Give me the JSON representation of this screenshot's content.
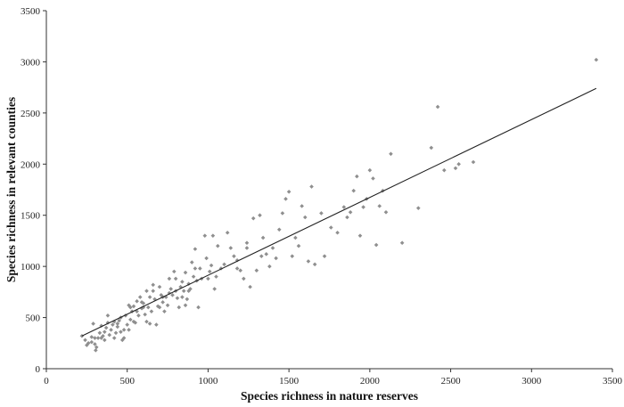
{
  "chart_data": {
    "type": "scatter",
    "title": "",
    "xlabel": "Species richness in nature reserves",
    "ylabel": "Species richness in relevant counties",
    "xlim": [
      0,
      3500
    ],
    "ylim": [
      0,
      3500
    ],
    "xticks": [
      0,
      500,
      1000,
      1500,
      2000,
      2500,
      3000,
      3500
    ],
    "yticks": [
      0,
      500,
      1000,
      1500,
      2000,
      2500,
      3000,
      3500
    ],
    "grid": false,
    "legend": "none",
    "colors": {
      "points": "#8f8f8f",
      "trendline": "#222222",
      "axes": "#333333"
    },
    "trendline": {
      "x": [
        220,
        3400
      ],
      "y": [
        320,
        2740
      ]
    },
    "series": [
      {
        "points": [
          [
            220,
            320
          ],
          [
            240,
            280
          ],
          [
            250,
            230
          ],
          [
            260,
            250
          ],
          [
            280,
            310
          ],
          [
            290,
            440
          ],
          [
            300,
            240
          ],
          [
            305,
            180
          ],
          [
            310,
            210
          ],
          [
            320,
            300
          ],
          [
            330,
            350
          ],
          [
            340,
            420
          ],
          [
            350,
            320
          ],
          [
            360,
            280
          ],
          [
            370,
            400
          ],
          [
            380,
            450
          ],
          [
            390,
            330
          ],
          [
            400,
            380
          ],
          [
            410,
            430
          ],
          [
            420,
            300
          ],
          [
            430,
            350
          ],
          [
            440,
            410
          ],
          [
            450,
            470
          ],
          [
            460,
            360
          ],
          [
            470,
            280
          ],
          [
            480,
            300
          ],
          [
            490,
            520
          ],
          [
            500,
            430
          ],
          [
            510,
            380
          ],
          [
            520,
            480
          ],
          [
            530,
            560
          ],
          [
            540,
            610
          ],
          [
            550,
            450
          ],
          [
            560,
            660
          ],
          [
            570,
            520
          ],
          [
            580,
            700
          ],
          [
            590,
            590
          ],
          [
            600,
            640
          ],
          [
            610,
            530
          ],
          [
            620,
            460
          ],
          [
            630,
            600
          ],
          [
            640,
            700
          ],
          [
            650,
            560
          ],
          [
            660,
            760
          ],
          [
            670,
            680
          ],
          [
            680,
            430
          ],
          [
            690,
            610
          ],
          [
            700,
            800
          ],
          [
            710,
            720
          ],
          [
            720,
            650
          ],
          [
            730,
            560
          ],
          [
            740,
            700
          ],
          [
            750,
            620
          ],
          [
            760,
            880
          ],
          [
            770,
            780
          ],
          [
            780,
            720
          ],
          [
            790,
            950
          ],
          [
            800,
            880
          ],
          [
            810,
            690
          ],
          [
            820,
            600
          ],
          [
            830,
            800
          ],
          [
            840,
            850
          ],
          [
            850,
            760
          ],
          [
            860,
            940
          ],
          [
            870,
            680
          ],
          [
            880,
            830
          ],
          [
            890,
            780
          ],
          [
            900,
            1040
          ],
          [
            910,
            900
          ],
          [
            920,
            1170
          ],
          [
            930,
            860
          ],
          [
            940,
            600
          ],
          [
            950,
            980
          ],
          [
            960,
            880
          ],
          [
            980,
            1300
          ],
          [
            990,
            1080
          ],
          [
            1000,
            880
          ],
          [
            1010,
            950
          ],
          [
            1020,
            1010
          ],
          [
            1030,
            1300
          ],
          [
            1040,
            780
          ],
          [
            1050,
            900
          ],
          [
            1060,
            1200
          ],
          [
            1080,
            980
          ],
          [
            1100,
            1020
          ],
          [
            1120,
            1330
          ],
          [
            1140,
            1180
          ],
          [
            1160,
            1100
          ],
          [
            1180,
            980
          ],
          [
            1200,
            960
          ],
          [
            1220,
            880
          ],
          [
            1240,
            1180
          ],
          [
            1260,
            800
          ],
          [
            1280,
            1470
          ],
          [
            1300,
            960
          ],
          [
            1320,
            1500
          ],
          [
            1340,
            1280
          ],
          [
            1360,
            1120
          ],
          [
            1380,
            1000
          ],
          [
            1400,
            1180
          ],
          [
            1420,
            1080
          ],
          [
            1440,
            1360
          ],
          [
            1460,
            1520
          ],
          [
            1480,
            1660
          ],
          [
            1500,
            1730
          ],
          [
            1520,
            1100
          ],
          [
            1540,
            1280
          ],
          [
            1560,
            1200
          ],
          [
            1580,
            1590
          ],
          [
            1600,
            1480
          ],
          [
            1620,
            1050
          ],
          [
            1640,
            1780
          ],
          [
            1660,
            1020
          ],
          [
            1700,
            1520
          ],
          [
            1720,
            1100
          ],
          [
            1760,
            1380
          ],
          [
            1800,
            1330
          ],
          [
            1840,
            1580
          ],
          [
            1860,
            1480
          ],
          [
            1880,
            1530
          ],
          [
            1900,
            1740
          ],
          [
            1920,
            1880
          ],
          [
            1940,
            1300
          ],
          [
            1960,
            1580
          ],
          [
            1980,
            1660
          ],
          [
            2000,
            1940
          ],
          [
            2020,
            1860
          ],
          [
            2040,
            1210
          ],
          [
            2060,
            1590
          ],
          [
            2080,
            1740
          ],
          [
            2100,
            1530
          ],
          [
            2130,
            2100
          ],
          [
            2200,
            1230
          ],
          [
            2300,
            1570
          ],
          [
            2380,
            2160
          ],
          [
            2420,
            2560
          ],
          [
            2460,
            1940
          ],
          [
            2530,
            1960
          ],
          [
            2550,
            2000
          ],
          [
            2640,
            2020
          ],
          [
            3400,
            3020
          ],
          [
            1180,
            1060
          ],
          [
            1240,
            1230
          ],
          [
            1330,
            1100
          ],
          [
            860,
            620
          ],
          [
            700,
            600
          ],
          [
            640,
            440
          ],
          [
            540,
            460
          ],
          [
            480,
            380
          ],
          [
            600,
            600
          ],
          [
            620,
            760
          ],
          [
            660,
            820
          ],
          [
            720,
            700
          ],
          [
            760,
            740
          ],
          [
            800,
            760
          ],
          [
            840,
            700
          ],
          [
            880,
            760
          ],
          [
            920,
            980
          ],
          [
            560,
            560
          ],
          [
            520,
            600
          ],
          [
            460,
            500
          ],
          [
            440,
            440
          ],
          [
            420,
            460
          ],
          [
            380,
            520
          ],
          [
            360,
            360
          ],
          [
            340,
            300
          ],
          [
            300,
            300
          ],
          [
            280,
            260
          ],
          [
            510,
            620
          ],
          [
            590,
            650
          ]
        ]
      }
    ]
  }
}
